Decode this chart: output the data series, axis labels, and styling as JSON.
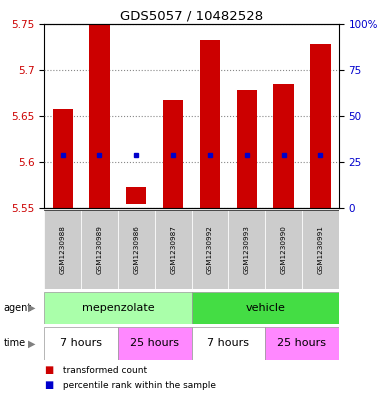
{
  "title": "GDS5057 / 10482528",
  "samples": [
    "GSM1230988",
    "GSM1230989",
    "GSM1230986",
    "GSM1230987",
    "GSM1230992",
    "GSM1230993",
    "GSM1230990",
    "GSM1230991"
  ],
  "bar_bottoms": [
    5.55,
    5.55,
    5.555,
    5.55,
    5.55,
    5.55,
    5.55,
    5.55
  ],
  "bar_tops": [
    5.658,
    5.748,
    5.573,
    5.667,
    5.732,
    5.678,
    5.685,
    5.728
  ],
  "blue_dots": [
    5.608,
    5.608,
    5.608,
    5.608,
    5.608,
    5.608,
    5.608,
    5.608
  ],
  "bar_color": "#cc0000",
  "blue_color": "#0000cc",
  "ylim_left": [
    5.55,
    5.75
  ],
  "yticks_left": [
    5.55,
    5.6,
    5.65,
    5.7,
    5.75
  ],
  "yticks_right_vals": [
    0,
    25,
    50,
    75,
    100
  ],
  "yticks_right_labels": [
    "0",
    "25",
    "50",
    "75",
    "100%"
  ],
  "ytick_left_color": "#cc0000",
  "ytick_right_color": "#0000cc",
  "grid_color": "#888888",
  "grid_style": "dotted",
  "agent_labels": [
    "mepenzolate",
    "vehicle"
  ],
  "agent_colors": [
    "#aaffaa",
    "#44dd44"
  ],
  "agent_ranges": [
    [
      0,
      4
    ],
    [
      4,
      8
    ]
  ],
  "time_labels": [
    "7 hours",
    "25 hours",
    "7 hours",
    "25 hours"
  ],
  "time_colors": [
    "#ffffff",
    "#ff88ff",
    "#ffffff",
    "#ff88ff"
  ],
  "time_ranges": [
    [
      0,
      2
    ],
    [
      2,
      4
    ],
    [
      4,
      6
    ],
    [
      6,
      8
    ]
  ],
  "sample_bg_color": "#cccccc",
  "legend_bar_color": "#cc0000",
  "legend_dot_color": "#0000cc",
  "legend_text1": " transformed count",
  "legend_text2": " percentile rank within the sample",
  "bar_width": 0.55,
  "fig_bg": "#ffffff"
}
